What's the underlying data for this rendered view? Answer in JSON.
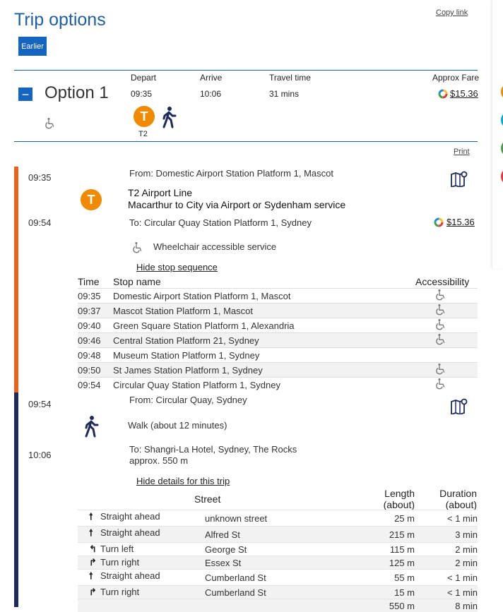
{
  "header": {
    "title": "Trip options",
    "copy_link": "Copy link",
    "earlier_button": "Earlier"
  },
  "columns": {
    "depart": "Depart",
    "arrive": "Arrive",
    "travel_time": "Travel time",
    "approx_fare": "Approx Fare"
  },
  "option": {
    "toggle": "−",
    "label": "Option 1",
    "depart": "09:35",
    "arrive": "10:06",
    "travel_time": "31 mins",
    "fare": "$15.36",
    "mode_badge": "T",
    "mode_label": "T2"
  },
  "print_label": "Print",
  "train_leg": {
    "depart_time": "09:35",
    "arrive_time": "09:54",
    "from": "From: Domestic Airport Station Platform 1, Mascot",
    "line": "T2 Airport Line",
    "service": "Macarthur to City via Airport or Sydenham service",
    "to": "To: Circular Quay Station Platform 1, Sydney",
    "fare": "$15.36",
    "accessibility": "Wheelchair accessible service",
    "hide_stops_link": "Hide stop sequence",
    "stop_table_headers": {
      "time": "Time",
      "stop": "Stop name",
      "access": "Accessibility"
    },
    "stops": [
      {
        "time": "09:35",
        "name": "Domestic Airport Station Platform 1, Mascot",
        "accessible": true
      },
      {
        "time": "09:37",
        "name": "Mascot Station Platform 1, Mascot",
        "accessible": true
      },
      {
        "time": "09:40",
        "name": "Green Square Station Platform 1, Alexandria",
        "accessible": true
      },
      {
        "time": "09:46",
        "name": "Central Station Platform 21, Sydney",
        "accessible": true
      },
      {
        "time": "09:48",
        "name": "Museum Station Platform 1, Sydney",
        "accessible": false
      },
      {
        "time": "09:50",
        "name": "St James Station Platform 1, Sydney",
        "accessible": true
      },
      {
        "time": "09:54",
        "name": "Circular Quay Station Platform 1, Sydney",
        "accessible": true
      }
    ]
  },
  "walk_leg": {
    "depart_time": "09:54",
    "arrive_time": "10:06",
    "from": "From: Circular Quay, Sydney",
    "walk": "Walk (about 12 minutes)",
    "to": "To: Shangri-La Hotel, Sydney, The Rocks",
    "distance": "approx. 550 m",
    "hide_details_link": "Hide details for this trip",
    "headers": {
      "street": "Street",
      "length_1": "Length",
      "length_2": "(about)",
      "duration_1": "Duration",
      "duration_2": "(about)"
    },
    "steps": [
      {
        "icon": "arrow-up-icon",
        "glyph": "🠕",
        "action": "Straight ahead",
        "street": "unknown street",
        "length": "25 m",
        "duration": "< 1 min"
      },
      {
        "icon": "arrow-up-icon",
        "glyph": "🠕",
        "action": "Straight ahead",
        "street": "Alfred St",
        "length": "215 m",
        "duration": "3 min"
      },
      {
        "icon": "turn-left-icon",
        "glyph": "↰",
        "action": "Turn left",
        "street": "George St",
        "length": "115 m",
        "duration": "2 min"
      },
      {
        "icon": "turn-right-icon",
        "glyph": "↱",
        "action": "Turn right",
        "street": "Essex St",
        "length": "125 m",
        "duration": "2 min"
      },
      {
        "icon": "arrow-up-icon",
        "glyph": "🠕",
        "action": "Straight ahead",
        "street": "Cumberland St",
        "length": "55 m",
        "duration": "< 1 min"
      },
      {
        "icon": "turn-right-icon",
        "glyph": "↱",
        "action": "Turn right",
        "street": "Cumberland St",
        "length": "15 m",
        "duration": "< 1 min"
      }
    ],
    "total_length": "550 m",
    "total_duration": "8 min"
  },
  "colors": {
    "brand_blue": "#1d5fa6",
    "train_orange": "#f08a00",
    "walk_navy": "#1f2a5c"
  }
}
